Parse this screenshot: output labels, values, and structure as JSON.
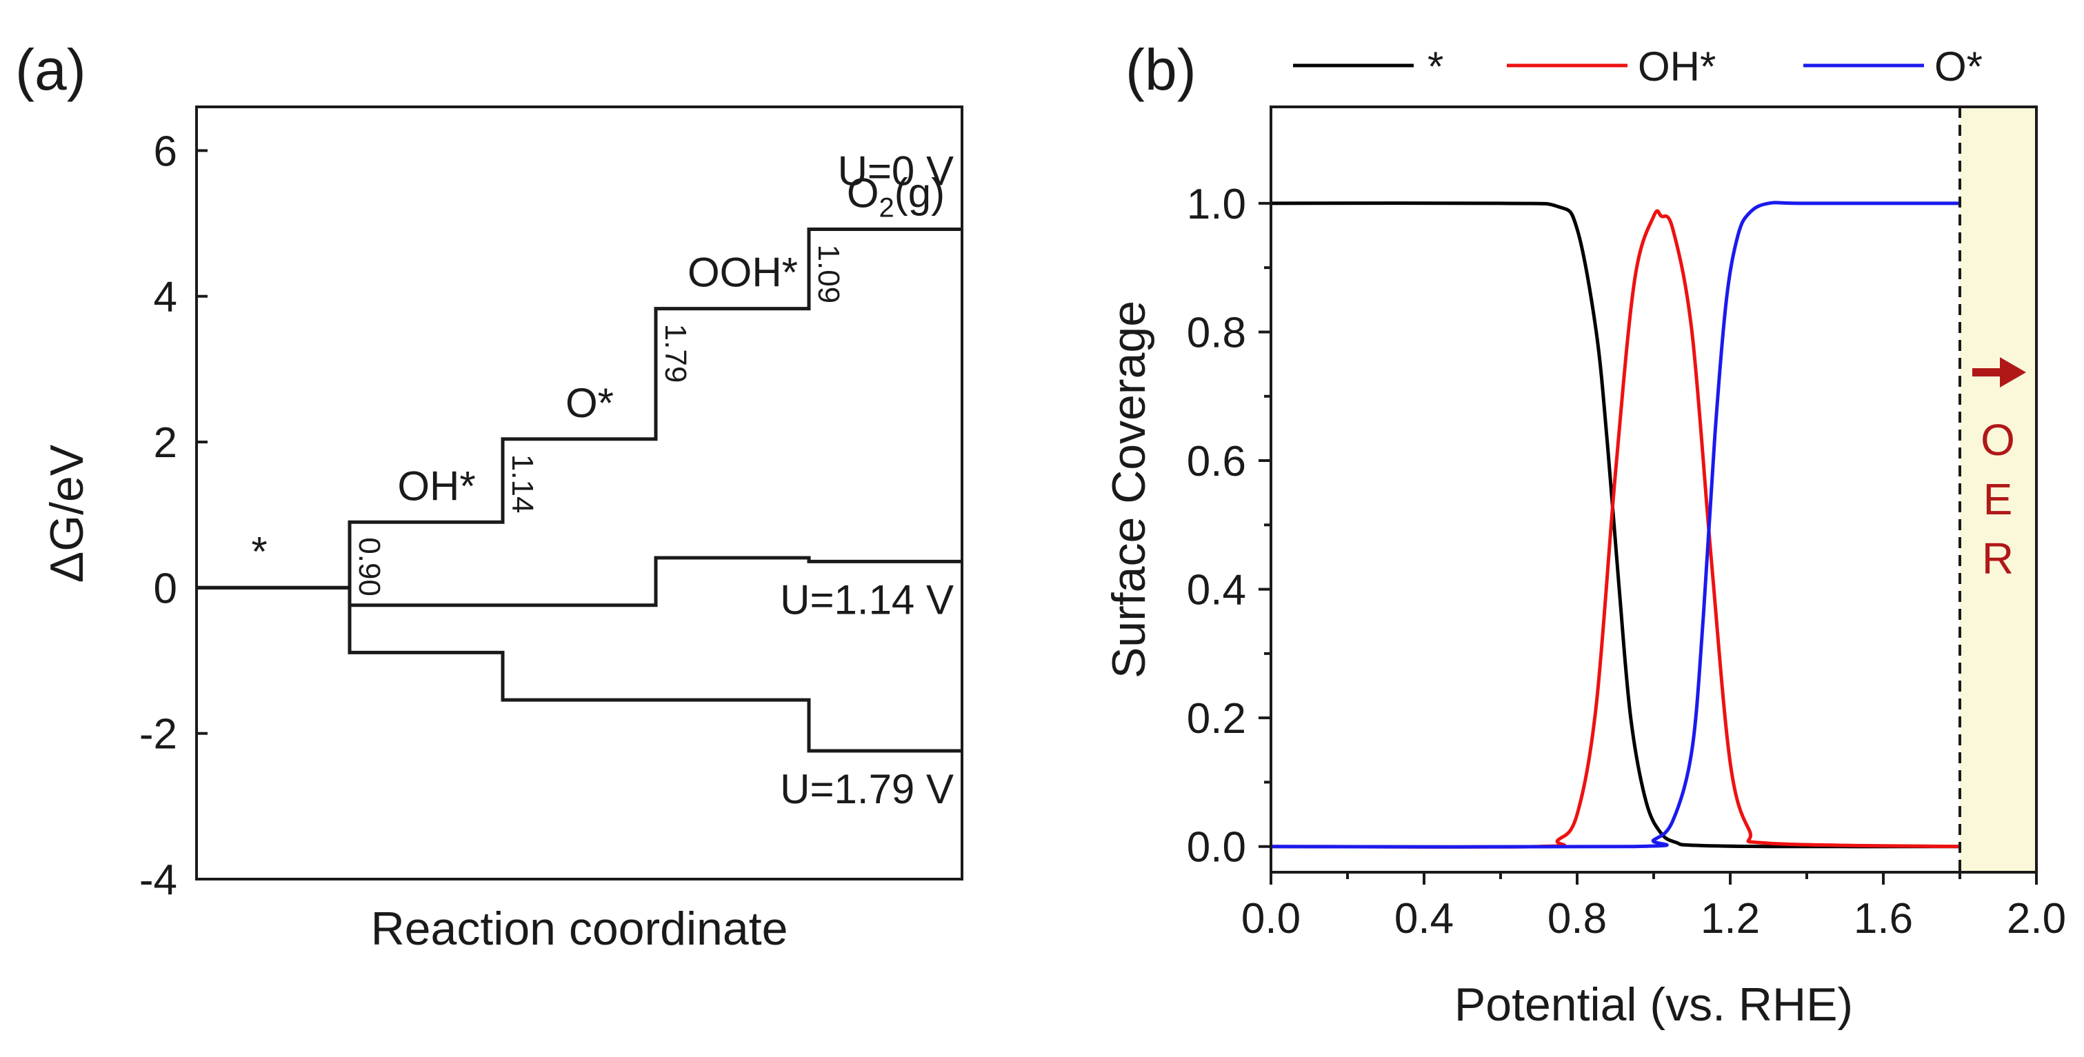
{
  "panels": [
    {
      "id": "a",
      "label": "(a)"
    },
    {
      "id": "b",
      "label": "(b)"
    }
  ],
  "chart_data": [
    {
      "type": "line",
      "title": "",
      "panel": "(a)",
      "xlabel": "Reaction coordinate",
      "ylabel": "ΔG/eV",
      "ylim": [
        -4,
        6.6
      ],
      "yticks": [
        -4,
        -2,
        0,
        2,
        4,
        6
      ],
      "ytick_labels": [
        "-4",
        "-2",
        "0",
        "2",
        "4",
        "6"
      ],
      "states": [
        "*",
        "OH*",
        "O*",
        "OOH*",
        "O2(g)"
      ],
      "state_labels": [
        {
          "text": "*"
        },
        {
          "text": "OH*"
        },
        {
          "text": "O*"
        },
        {
          "text": "OOH*"
        },
        {
          "text": "O",
          "sub": "2",
          "suffix": "(g)"
        }
      ],
      "series": [
        {
          "name": "U=0 V",
          "label": "U=0 V",
          "values": [
            0,
            0.9,
            2.04,
            3.83,
            4.92
          ]
        },
        {
          "name": "U=1.14 V",
          "label": "U=1.14 V",
          "values": [
            0,
            -0.24,
            -0.24,
            0.41,
            0.36
          ]
        },
        {
          "name": "U=1.79 V",
          "label": "U=1.79 V",
          "values": [
            0,
            -0.89,
            -1.54,
            -1.54,
            -2.24
          ]
        }
      ],
      "step_annotations": [
        {
          "text": "0.90",
          "after_state": 1
        },
        {
          "text": "1.14",
          "after_state": 2
        },
        {
          "text": "1.79",
          "after_state": 3
        },
        {
          "text": "1.09",
          "after_state": 4
        }
      ]
    },
    {
      "type": "line",
      "title": "",
      "panel": "(b)",
      "xlabel": "Potential (vs. RHE)",
      "ylabel": "Surface Coverage",
      "xlim": [
        0,
        2.0
      ],
      "ylim": [
        -0.04,
        1.15
      ],
      "xticks": [
        0.0,
        0.4,
        0.8,
        1.2,
        1.6,
        2.0
      ],
      "xtick_labels": [
        "0.0",
        "0.4",
        "0.8",
        "1.2",
        "1.6",
        "2.0"
      ],
      "yticks": [
        0.0,
        0.2,
        0.4,
        0.6,
        0.8,
        1.0
      ],
      "ytick_labels": [
        "0.0",
        "0.2",
        "0.4",
        "0.6",
        "0.8",
        "1.0"
      ],
      "legend": "top",
      "series": [
        {
          "name": "*",
          "color": "#000000",
          "x": [
            0.0,
            0.6,
            0.75,
            0.8,
            0.85,
            0.88,
            0.91,
            0.94,
            0.98,
            1.02,
            1.06,
            1.1,
            1.3,
            1.8
          ],
          "y": [
            1.0,
            1.0,
            0.995,
            0.96,
            0.8,
            0.62,
            0.4,
            0.2,
            0.07,
            0.02,
            0.006,
            0.002,
            0.0,
            0.0
          ]
        },
        {
          "name": "OH*",
          "color": "#ee1111",
          "x": [
            0.0,
            0.7,
            0.75,
            0.8,
            0.85,
            0.9,
            0.95,
            1.0,
            1.02,
            1.05,
            1.1,
            1.15,
            1.2,
            1.25,
            1.3,
            1.8
          ],
          "y": [
            0.0,
            0.0,
            0.01,
            0.05,
            0.22,
            0.58,
            0.88,
            0.98,
            0.98,
            0.96,
            0.8,
            0.45,
            0.13,
            0.025,
            0.005,
            0.0
          ]
        },
        {
          "name": "O*",
          "color": "#1a1aee",
          "x": [
            0.0,
            0.95,
            1.0,
            1.05,
            1.1,
            1.13,
            1.16,
            1.19,
            1.22,
            1.25,
            1.3,
            1.4,
            1.8
          ],
          "y": [
            0.0,
            0.0,
            0.01,
            0.04,
            0.15,
            0.36,
            0.64,
            0.85,
            0.95,
            0.985,
            1.0,
            1.0,
            1.0
          ]
        }
      ],
      "threshold": {
        "x": 1.8,
        "style": "dashed"
      },
      "shaded_region": {
        "x_start": 1.8,
        "x_end": 2.0,
        "color": "#fbf8da"
      },
      "annotation": {
        "text": "OER",
        "letters": [
          "O",
          "E",
          "R"
        ],
        "color": "#b01818",
        "arrow": "right"
      }
    }
  ]
}
